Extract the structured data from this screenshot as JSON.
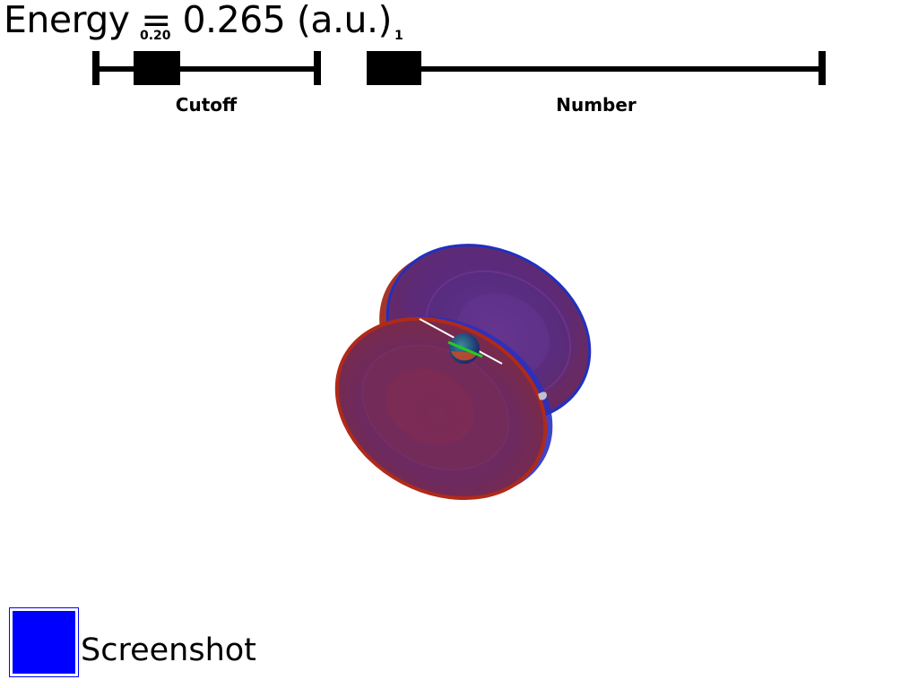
{
  "title": {
    "text": "Energy = 0.265 (a.u.)"
  },
  "sliders": {
    "cutoff": {
      "label": "Cutoff",
      "value_text": "0.20"
    },
    "number": {
      "label": "Number",
      "value_text": "1"
    }
  },
  "orbital": {
    "positive_color": "#b02010",
    "negative_color": "#3020b0",
    "overlay_color": "#6a2a7a",
    "nucleus_color": "#2a4c8a",
    "axis_color": "#22cc22"
  },
  "screenshot_button": {
    "label": "Screenshot",
    "color": "#0000ff"
  }
}
